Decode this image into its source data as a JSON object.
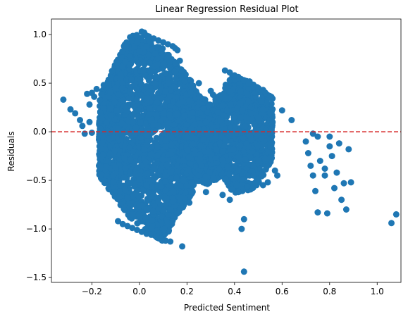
{
  "chart_data": {
    "type": "scatter",
    "title": "Linear Regression Residual Plot",
    "xlabel": "Predicted Sentiment",
    "ylabel": "Residuals",
    "xlim": [
      -0.37,
      1.1
    ],
    "ylim": [
      -1.55,
      1.16
    ],
    "x_ticks": [
      -0.2,
      0.0,
      0.2,
      0.4,
      0.6,
      0.8,
      1.0
    ],
    "x_tick_labels": [
      "−0.2",
      "0.0",
      "0.2",
      "0.4",
      "0.6",
      "0.8",
      "1.0"
    ],
    "y_ticks": [
      -1.5,
      -1.0,
      -0.5,
      0.0,
      0.5,
      1.0
    ],
    "y_tick_labels": [
      "−1.5",
      "−1.0",
      "−0.5",
      "0.0",
      "0.5",
      "1.0"
    ],
    "grid": false,
    "legend": false,
    "marker_color": "#1f77b4",
    "reference_line": {
      "y": 0.0,
      "color": "#d62728",
      "style": "dashed"
    },
    "points": [
      [
        -0.32,
        0.33
      ],
      [
        -0.29,
        0.23
      ],
      [
        -0.27,
        0.19
      ],
      [
        -0.25,
        0.12
      ],
      [
        -0.24,
        0.06
      ],
      [
        -0.22,
        0.39
      ],
      [
        -0.21,
        0.28
      ],
      [
        -0.2,
        0.4
      ],
      [
        -0.19,
        0.36
      ],
      [
        -0.18,
        0.44
      ],
      [
        -0.23,
        -0.02
      ],
      [
        -0.21,
        0.1
      ],
      [
        -0.2,
        -0.01
      ],
      [
        -0.17,
        -0.35
      ],
      [
        -0.16,
        -0.37
      ],
      [
        -0.15,
        0.48
      ],
      [
        -0.14,
        -0.36
      ],
      [
        -0.13,
        0.51
      ],
      [
        -0.12,
        0.55
      ],
      [
        -0.12,
        -0.38
      ],
      [
        -0.11,
        -0.45
      ],
      [
        -0.1,
        -0.37
      ],
      [
        -0.09,
        0.62
      ],
      [
        -0.08,
        0.59
      ],
      [
        -0.07,
        0.67
      ],
      [
        -0.06,
        0.72
      ],
      [
        -0.05,
        0.8
      ],
      [
        -0.04,
        0.78
      ],
      [
        -0.02,
        0.88
      ],
      [
        -0.01,
        0.92
      ],
      [
        0.0,
        0.83
      ],
      [
        0.01,
        1.03
      ],
      [
        0.02,
        1.02
      ],
      [
        0.03,
        0.99
      ],
      [
        0.04,
        0.98
      ],
      [
        0.06,
        0.96
      ],
      [
        0.08,
        0.94
      ],
      [
        0.1,
        0.92
      ],
      [
        0.12,
        0.9
      ],
      [
        0.14,
        0.88
      ],
      [
        0.15,
        0.86
      ],
      [
        0.16,
        0.84
      ],
      [
        0.17,
        0.73
      ],
      [
        0.18,
        0.55
      ],
      [
        0.19,
        0.52
      ],
      [
        -0.08,
        -0.55
      ],
      [
        -0.06,
        -0.6
      ],
      [
        -0.05,
        -0.68
      ],
      [
        -0.03,
        -0.85
      ],
      [
        -0.09,
        -0.92
      ],
      [
        -0.07,
        -0.95
      ],
      [
        -0.05,
        -0.97
      ],
      [
        -0.03,
        -0.99
      ],
      [
        -0.01,
        -1.01
      ],
      [
        0.01,
        -1.03
      ],
      [
        0.03,
        -1.05
      ],
      [
        0.05,
        -1.06
      ],
      [
        0.07,
        -1.08
      ],
      [
        0.09,
        -1.1
      ],
      [
        0.11,
        -1.12
      ],
      [
        0.13,
        -1.13
      ],
      [
        0.18,
        -1.18
      ],
      [
        0.12,
        -0.85
      ],
      [
        0.13,
        -0.8
      ],
      [
        0.14,
        -0.72
      ],
      [
        0.17,
        -0.68
      ],
      [
        0.2,
        -0.55
      ],
      [
        0.22,
        -0.52
      ],
      [
        0.21,
        -0.73
      ],
      [
        0.25,
        -0.45
      ],
      [
        0.26,
        -0.35
      ],
      [
        0.25,
        0.5
      ],
      [
        0.27,
        0.24
      ],
      [
        0.28,
        0.1
      ],
      [
        0.28,
        -0.62
      ],
      [
        0.3,
        0.42
      ],
      [
        0.31,
        0.38
      ],
      [
        0.32,
        0.3
      ],
      [
        0.33,
        0.2
      ],
      [
        0.34,
        0.12
      ],
      [
        0.35,
        -0.65
      ],
      [
        0.36,
        0.63
      ],
      [
        0.38,
        0.61
      ],
      [
        0.4,
        0.58
      ],
      [
        0.42,
        0.55
      ],
      [
        0.44,
        0.53
      ],
      [
        0.46,
        0.5
      ],
      [
        0.48,
        0.47
      ],
      [
        0.5,
        0.45
      ],
      [
        0.52,
        0.43
      ],
      [
        0.53,
        0.4
      ],
      [
        0.38,
        -0.7
      ],
      [
        0.41,
        -0.55
      ],
      [
        0.43,
        -1.0
      ],
      [
        0.44,
        -0.9
      ],
      [
        0.44,
        -1.44
      ],
      [
        0.48,
        -0.45
      ],
      [
        0.5,
        -0.5
      ],
      [
        0.52,
        -0.55
      ],
      [
        0.54,
        -0.52
      ],
      [
        0.55,
        0.2
      ],
      [
        0.56,
        0.1
      ],
      [
        0.57,
        -0.4
      ],
      [
        0.58,
        -0.45
      ],
      [
        0.6,
        0.22
      ],
      [
        0.64,
        0.12
      ],
      [
        0.7,
        -0.1
      ],
      [
        0.71,
        -0.22
      ],
      [
        0.72,
        -0.35
      ],
      [
        0.73,
        -0.45
      ],
      [
        0.74,
        -0.61
      ],
      [
        0.73,
        -0.02
      ],
      [
        0.75,
        -0.05
      ],
      [
        0.75,
        -0.83
      ],
      [
        0.76,
        -0.3
      ],
      [
        0.78,
        -0.38
      ],
      [
        0.78,
        -0.45
      ],
      [
        0.79,
        -0.84
      ],
      [
        0.8,
        -0.05
      ],
      [
        0.8,
        -0.15
      ],
      [
        0.81,
        -0.25
      ],
      [
        0.82,
        -0.58
      ],
      [
        0.83,
        -0.42
      ],
      [
        0.84,
        -0.12
      ],
      [
        0.85,
        -0.7
      ],
      [
        0.86,
        -0.53
      ],
      [
        0.87,
        -0.8
      ],
      [
        0.88,
        -0.18
      ],
      [
        0.89,
        -0.52
      ],
      [
        1.06,
        -0.94
      ],
      [
        1.08,
        -0.85
      ]
    ],
    "dense_regions": [
      {
        "x": [
          -0.17,
          0.23
        ],
        "y_top": [
          0.35,
          1.03,
          0.86,
          0.5
        ],
        "y_bottom": [
          -0.45,
          -0.9,
          -1.13,
          -0.6
        ]
      },
      {
        "x": [
          0.18,
          0.35
        ],
        "y_top": [
          0.5,
          0.42,
          0.3,
          0.1
        ],
        "y_bottom": [
          -0.4,
          -0.5,
          -0.55,
          -0.45
        ]
      },
      {
        "x": [
          0.32,
          0.56
        ],
        "y_top": [
          0.35,
          0.6,
          0.5,
          0.35
        ],
        "y_bottom": [
          -0.35,
          -0.65,
          -0.6,
          -0.3
        ]
      }
    ]
  }
}
